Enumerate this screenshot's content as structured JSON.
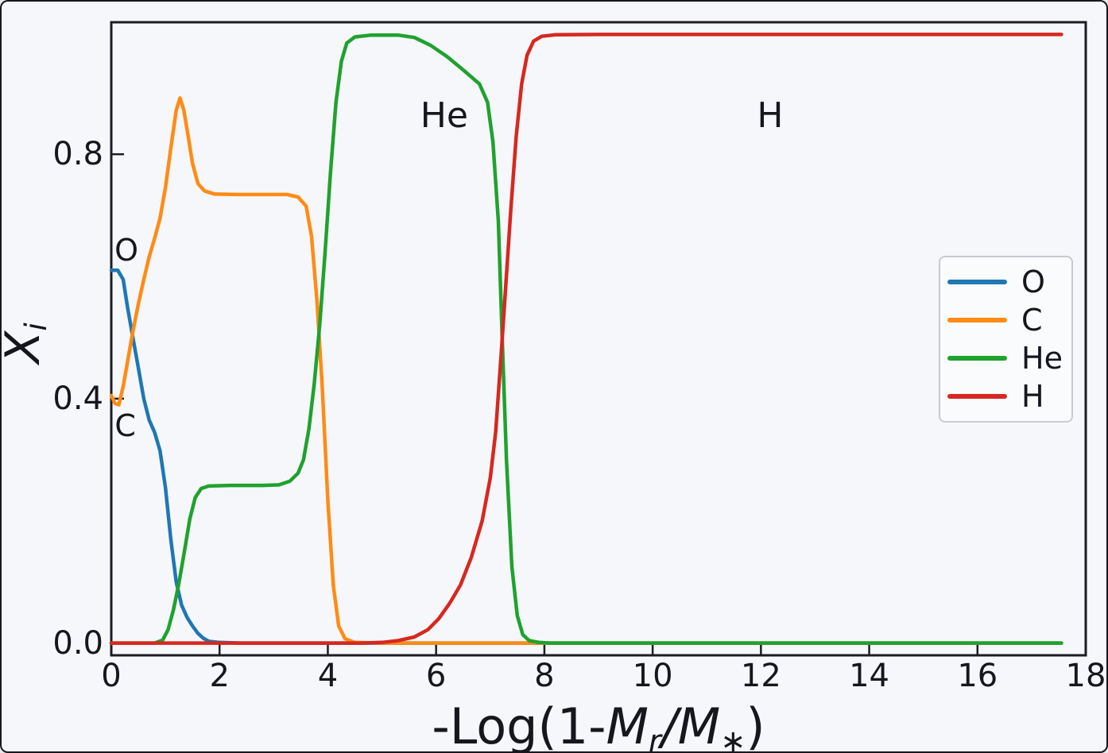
{
  "figure": {
    "background": "#f6f7fa",
    "frame_color": "#1c1c26",
    "text_color": "#16161e"
  },
  "chart_data": {
    "type": "line",
    "title": "",
    "xlabel": "-Log(1-M_r/M_*)",
    "xlabel_parts": {
      "prefix": "-Log(1-",
      "m1": "M",
      "sub1": "r",
      "slash": "/",
      "m2": "M",
      "sub2": "∗",
      "close": ")"
    },
    "ylabel": "X_i",
    "ylabel_parts": {
      "main": "X",
      "sub": "i"
    },
    "xlim": [
      0,
      18
    ],
    "ylim": [
      -0.02,
      1.016
    ],
    "grid": false,
    "xticks": [
      0,
      2,
      4,
      6,
      8,
      10,
      12,
      14,
      16,
      18
    ],
    "xtick_labels": [
      "0",
      "2",
      "4",
      "6",
      "8",
      "10",
      "12",
      "14",
      "16",
      "18"
    ],
    "yticks": [
      0.0,
      0.4,
      0.8
    ],
    "ytick_labels": [
      "0.0",
      "0.4",
      "0.8"
    ],
    "legend": {
      "position": "center right",
      "entries": [
        "O",
        "C",
        "He",
        "H"
      ]
    },
    "annotations": [
      {
        "text": "O",
        "x": 0.28,
        "y": 0.643
      },
      {
        "text": "C",
        "x": 0.26,
        "y": 0.356
      },
      {
        "text": "He",
        "x": 6.15,
        "y": 0.862
      },
      {
        "text": "H",
        "x": 12.17,
        "y": 0.863
      }
    ],
    "series": [
      {
        "name": "O",
        "color": "#1f77b4",
        "points": [
          [
            0,
            0.61
          ],
          [
            0.12,
            0.61
          ],
          [
            0.22,
            0.595
          ],
          [
            0.3,
            0.55
          ],
          [
            0.4,
            0.5
          ],
          [
            0.5,
            0.45
          ],
          [
            0.6,
            0.4
          ],
          [
            0.7,
            0.365
          ],
          [
            0.8,
            0.345
          ],
          [
            0.9,
            0.315
          ],
          [
            1.0,
            0.255
          ],
          [
            1.1,
            0.17
          ],
          [
            1.2,
            0.1
          ],
          [
            1.3,
            0.062
          ],
          [
            1.4,
            0.042
          ],
          [
            1.5,
            0.028
          ],
          [
            1.6,
            0.016
          ],
          [
            1.7,
            0.008
          ],
          [
            1.8,
            0.003
          ],
          [
            2.0,
            0.001
          ],
          [
            2.4,
            0.0
          ],
          [
            17.55,
            0.0
          ]
        ]
      },
      {
        "name": "C",
        "color": "#ff8b15",
        "points": [
          [
            0,
            0.405
          ],
          [
            0.07,
            0.392
          ],
          [
            0.14,
            0.39
          ],
          [
            0.22,
            0.42
          ],
          [
            0.3,
            0.46
          ],
          [
            0.4,
            0.51
          ],
          [
            0.5,
            0.555
          ],
          [
            0.6,
            0.595
          ],
          [
            0.7,
            0.632
          ],
          [
            0.8,
            0.662
          ],
          [
            0.9,
            0.695
          ],
          [
            1.0,
            0.745
          ],
          [
            1.1,
            0.81
          ],
          [
            1.2,
            0.872
          ],
          [
            1.27,
            0.892
          ],
          [
            1.34,
            0.872
          ],
          [
            1.42,
            0.83
          ],
          [
            1.5,
            0.785
          ],
          [
            1.6,
            0.752
          ],
          [
            1.72,
            0.74
          ],
          [
            1.9,
            0.735
          ],
          [
            2.3,
            0.734
          ],
          [
            2.9,
            0.734
          ],
          [
            3.25,
            0.734
          ],
          [
            3.45,
            0.73
          ],
          [
            3.6,
            0.715
          ],
          [
            3.7,
            0.665
          ],
          [
            3.8,
            0.56
          ],
          [
            3.9,
            0.415
          ],
          [
            4.0,
            0.235
          ],
          [
            4.1,
            0.095
          ],
          [
            4.2,
            0.028
          ],
          [
            4.32,
            0.007
          ],
          [
            4.5,
            0.001
          ],
          [
            5.0,
            0.0
          ],
          [
            17.55,
            0.0
          ]
        ]
      },
      {
        "name": "He",
        "color": "#1fa22e",
        "points": [
          [
            0,
            0.0
          ],
          [
            0.8,
            0.0
          ],
          [
            0.95,
            0.005
          ],
          [
            1.05,
            0.022
          ],
          [
            1.15,
            0.055
          ],
          [
            1.25,
            0.098
          ],
          [
            1.35,
            0.15
          ],
          [
            1.45,
            0.203
          ],
          [
            1.55,
            0.238
          ],
          [
            1.66,
            0.253
          ],
          [
            1.8,
            0.257
          ],
          [
            2.2,
            0.258
          ],
          [
            2.8,
            0.258
          ],
          [
            3.1,
            0.259
          ],
          [
            3.3,
            0.265
          ],
          [
            3.45,
            0.278
          ],
          [
            3.55,
            0.3
          ],
          [
            3.65,
            0.35
          ],
          [
            3.75,
            0.425
          ],
          [
            3.85,
            0.52
          ],
          [
            3.95,
            0.64
          ],
          [
            4.05,
            0.77
          ],
          [
            4.15,
            0.885
          ],
          [
            4.25,
            0.952
          ],
          [
            4.35,
            0.982
          ],
          [
            4.5,
            0.992
          ],
          [
            4.8,
            0.995
          ],
          [
            5.3,
            0.995
          ],
          [
            5.6,
            0.991
          ],
          [
            5.9,
            0.978
          ],
          [
            6.2,
            0.96
          ],
          [
            6.5,
            0.938
          ],
          [
            6.8,
            0.915
          ],
          [
            6.95,
            0.885
          ],
          [
            7.05,
            0.82
          ],
          [
            7.15,
            0.69
          ],
          [
            7.22,
            0.5
          ],
          [
            7.3,
            0.3
          ],
          [
            7.4,
            0.125
          ],
          [
            7.5,
            0.045
          ],
          [
            7.6,
            0.014
          ],
          [
            7.72,
            0.004
          ],
          [
            7.9,
            0.001
          ],
          [
            8.1,
            0.0
          ],
          [
            17.55,
            0.0
          ]
        ]
      },
      {
        "name": "H",
        "color": "#d62820",
        "points": [
          [
            0,
            0.0
          ],
          [
            3.0,
            0.0
          ],
          [
            4.6,
            0.0
          ],
          [
            5.0,
            0.001
          ],
          [
            5.3,
            0.004
          ],
          [
            5.6,
            0.01
          ],
          [
            5.85,
            0.022
          ],
          [
            6.05,
            0.04
          ],
          [
            6.25,
            0.065
          ],
          [
            6.45,
            0.095
          ],
          [
            6.65,
            0.14
          ],
          [
            6.85,
            0.2
          ],
          [
            7.0,
            0.27
          ],
          [
            7.1,
            0.345
          ],
          [
            7.2,
            0.47
          ],
          [
            7.28,
            0.575
          ],
          [
            7.38,
            0.71
          ],
          [
            7.48,
            0.83
          ],
          [
            7.58,
            0.915
          ],
          [
            7.68,
            0.962
          ],
          [
            7.8,
            0.985
          ],
          [
            7.95,
            0.993
          ],
          [
            8.2,
            0.9955
          ],
          [
            9.0,
            0.996
          ],
          [
            12.0,
            0.996
          ],
          [
            15.0,
            0.996
          ],
          [
            17.55,
            0.996
          ]
        ]
      }
    ]
  }
}
